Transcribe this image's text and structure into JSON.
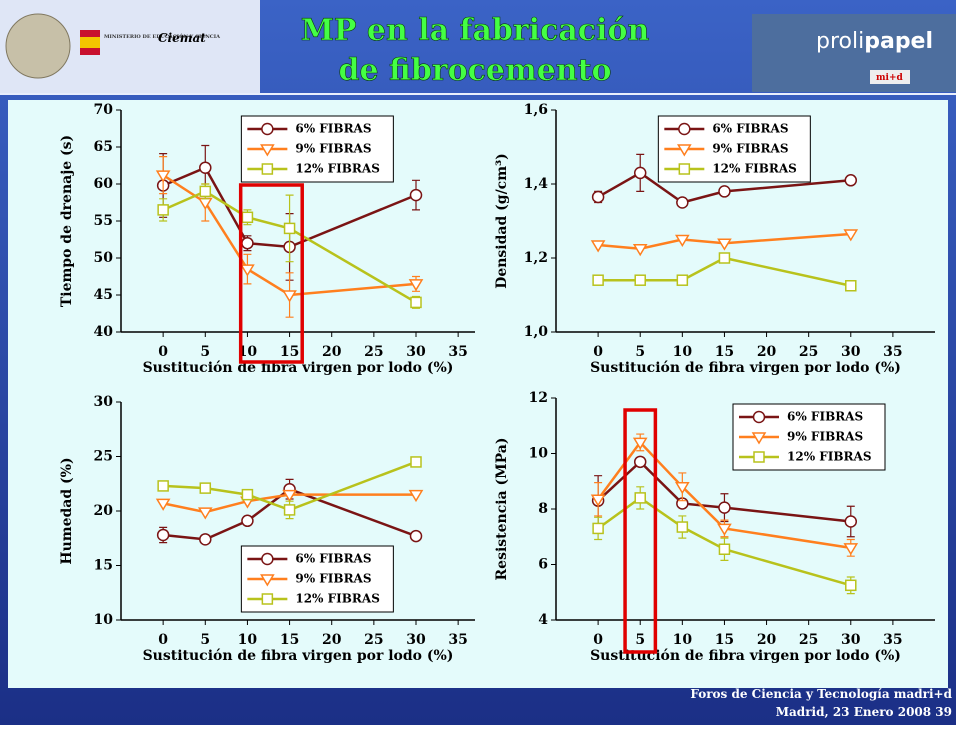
{
  "slide": {
    "title_line1": "MP en la fabricación",
    "title_line2": "de fibrocemento",
    "logo_ministerio": "MINISTERIO DE EDUCACIÓN Y CIENCIA",
    "logo_ciemat": "Ciemat",
    "logo_proli": "proli",
    "logo_papel": "papel",
    "logo_mid": "mi+d",
    "footer_line1": "Foros de Ciencia y Tecnología madri+d",
    "footer_line2": "Madrid, 23 Enero 2008 39"
  },
  "chart_data": [
    {
      "type": "line",
      "ylabel": "Tiempo de drenaje (s)",
      "xlabel": "Sustitución de fibra virgen por lodo (%)",
      "x": [
        0,
        5,
        10,
        15,
        30
      ],
      "xlim": [
        -5,
        37
      ],
      "xticks": [
        0,
        5,
        10,
        15,
        20,
        25,
        30,
        35
      ],
      "ylim": [
        40,
        70
      ],
      "yticks": [
        40,
        45,
        50,
        55,
        60,
        65,
        70
      ],
      "legend": "upper center",
      "series": [
        {
          "name": "6% FIBRAS",
          "color": "#7a1414",
          "marker": "circle",
          "values": [
            59.8,
            62.2,
            52,
            51.5,
            58.5
          ],
          "errors": [
            4.3,
            3,
            1,
            4.5,
            2
          ]
        },
        {
          "name": "9% FIBRAS",
          "color": "#ff7f1e",
          "marker": "triangle-down",
          "values": [
            61.2,
            57.5,
            48.5,
            45,
            46.5
          ],
          "errors": [
            2.5,
            2.5,
            2,
            3,
            1
          ]
        },
        {
          "name": "12% FIBRAS",
          "color": "#b8c21c",
          "marker": "square",
          "values": [
            56.5,
            59,
            55.5,
            54,
            44
          ],
          "errors": [
            1.5,
            1,
            1,
            4.5,
            0.8
          ]
        }
      ]
    },
    {
      "type": "line",
      "ylabel": "Densidad (g/cm³)",
      "xlabel": "Sustitución de fibra virgen por lodo (%)",
      "x": [
        0,
        5,
        10,
        15,
        30
      ],
      "xlim": [
        -5,
        40
      ],
      "xticks": [
        0,
        5,
        10,
        15,
        20,
        25,
        30,
        35
      ],
      "ylim": [
        1.0,
        1.6
      ],
      "yticks": [
        {
          "value": 1.0,
          "label": "1,0"
        },
        {
          "value": 1.2,
          "label": "1,2"
        },
        {
          "value": 1.4,
          "label": "1,4"
        },
        {
          "value": 1.6,
          "label": "1,6"
        }
      ],
      "legend": "upper left",
      "series": [
        {
          "name": "6% FIBRAS",
          "color": "#7a1414",
          "marker": "circle",
          "values": [
            1.365,
            1.43,
            1.35,
            1.38,
            1.41
          ],
          "errors": [
            0.015,
            0.05,
            null,
            null,
            null
          ]
        },
        {
          "name": "9% FIBRAS",
          "color": "#ff7f1e",
          "marker": "triangle-down",
          "values": [
            1.235,
            1.225,
            1.25,
            1.24,
            1.265
          ],
          "errors": [
            null,
            null,
            null,
            null,
            null
          ]
        },
        {
          "name": "12% FIBRAS",
          "color": "#b8c21c",
          "marker": "square",
          "values": [
            1.14,
            1.14,
            1.14,
            1.2,
            1.125
          ],
          "errors": [
            null,
            null,
            null,
            null,
            null
          ]
        }
      ]
    },
    {
      "type": "line",
      "ylabel": "Humedad (%)",
      "xlabel": "Sustitución de fibra virgen por lodo (%)",
      "x": [
        0,
        5,
        10,
        15,
        30
      ],
      "xlim": [
        -5,
        37
      ],
      "xticks": [
        0,
        5,
        10,
        15,
        20,
        25,
        30,
        35
      ],
      "ylim": [
        10,
        30
      ],
      "yticks": [
        10,
        15,
        20,
        25,
        30
      ],
      "legend": "lower center",
      "series": [
        {
          "name": "6% FIBRAS",
          "color": "#7a1414",
          "marker": "circle",
          "values": [
            17.8,
            17.4,
            19.1,
            22,
            17.7
          ],
          "errors": [
            0.7,
            null,
            null,
            0.9,
            null
          ]
        },
        {
          "name": "9% FIBRAS",
          "color": "#ff7f1e",
          "marker": "triangle-down",
          "values": [
            20.7,
            19.9,
            20.9,
            21.5,
            21.5
          ],
          "errors": [
            null,
            null,
            null,
            null,
            null
          ]
        },
        {
          "name": "12% FIBRAS",
          "color": "#b8c21c",
          "marker": "square",
          "values": [
            22.3,
            22.1,
            21.5,
            20.1,
            24.5
          ],
          "errors": [
            null,
            null,
            null,
            0.8,
            null
          ]
        }
      ]
    },
    {
      "type": "line",
      "ylabel": "Resistencia (MPa)",
      "xlabel": "Sustitución de fibra virgen por lodo (%)",
      "x": [
        0,
        5,
        10,
        15,
        30
      ],
      "xlim": [
        -5,
        40
      ],
      "xticks": [
        0,
        5,
        10,
        15,
        20,
        25,
        30,
        35
      ],
      "ylim": [
        4,
        12
      ],
      "yticks": [
        4,
        6,
        8,
        10,
        12
      ],
      "legend": "upper right",
      "series": [
        {
          "name": "6% FIBRAS",
          "color": "#7a1414",
          "marker": "circle",
          "values": [
            8.3,
            9.7,
            8.2,
            8.05,
            7.55
          ],
          "errors": [
            0.9,
            null,
            null,
            0.5,
            0.55
          ]
        },
        {
          "name": "9% FIBRAS",
          "color": "#ff7f1e",
          "marker": "triangle-down",
          "values": [
            8.35,
            10.4,
            8.8,
            7.3,
            6.6
          ],
          "errors": [
            0.6,
            0.3,
            0.5,
            0.3,
            0.3
          ]
        },
        {
          "name": "12% FIBRAS",
          "color": "#b8c21c",
          "marker": "square",
          "values": [
            7.3,
            8.4,
            7.35,
            6.55,
            5.25
          ],
          "errors": [
            0.4,
            0.4,
            0.4,
            0.4,
            0.3
          ]
        }
      ]
    }
  ]
}
